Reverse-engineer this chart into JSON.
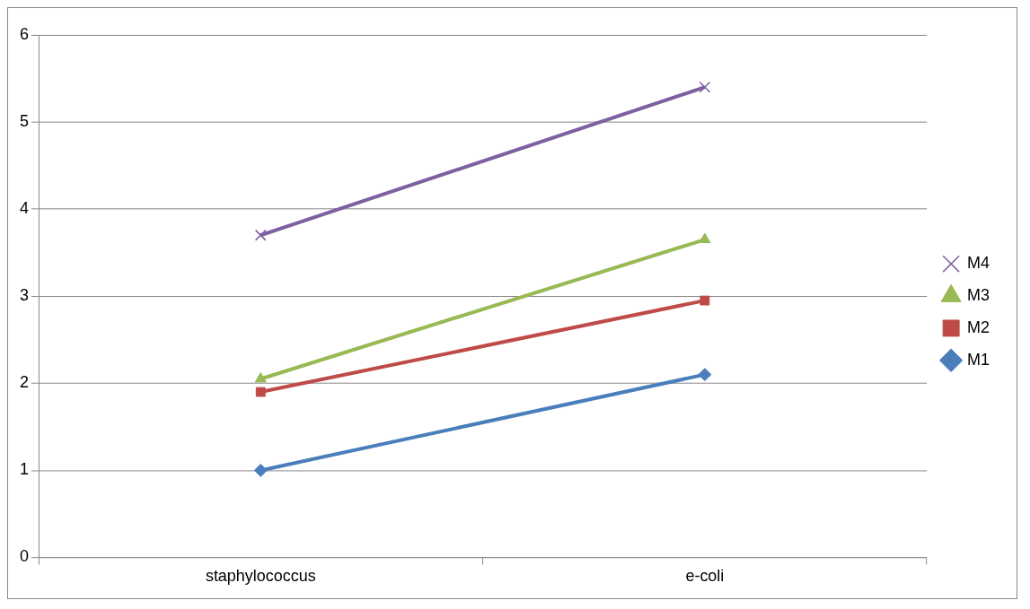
{
  "chart_data": {
    "type": "line",
    "categories": [
      "staphylococcus",
      "e-coli"
    ],
    "series": [
      {
        "name": "M1",
        "color": "#4a7ebb",
        "marker": "diamond",
        "values": [
          1.0,
          2.1
        ]
      },
      {
        "name": "M2",
        "color": "#be4b48",
        "marker": "square",
        "values": [
          1.9,
          2.95
        ]
      },
      {
        "name": "M3",
        "color": "#98b954",
        "marker": "triangle",
        "values": [
          2.05,
          3.65
        ]
      },
      {
        "name": "M4",
        "color": "#7d60a0",
        "marker": "cross",
        "values": [
          3.7,
          5.4
        ]
      }
    ],
    "ylim": [
      0,
      6
    ],
    "yticks": [
      0,
      1,
      2,
      3,
      4,
      5,
      6
    ],
    "grid": "y",
    "legend": "right"
  }
}
